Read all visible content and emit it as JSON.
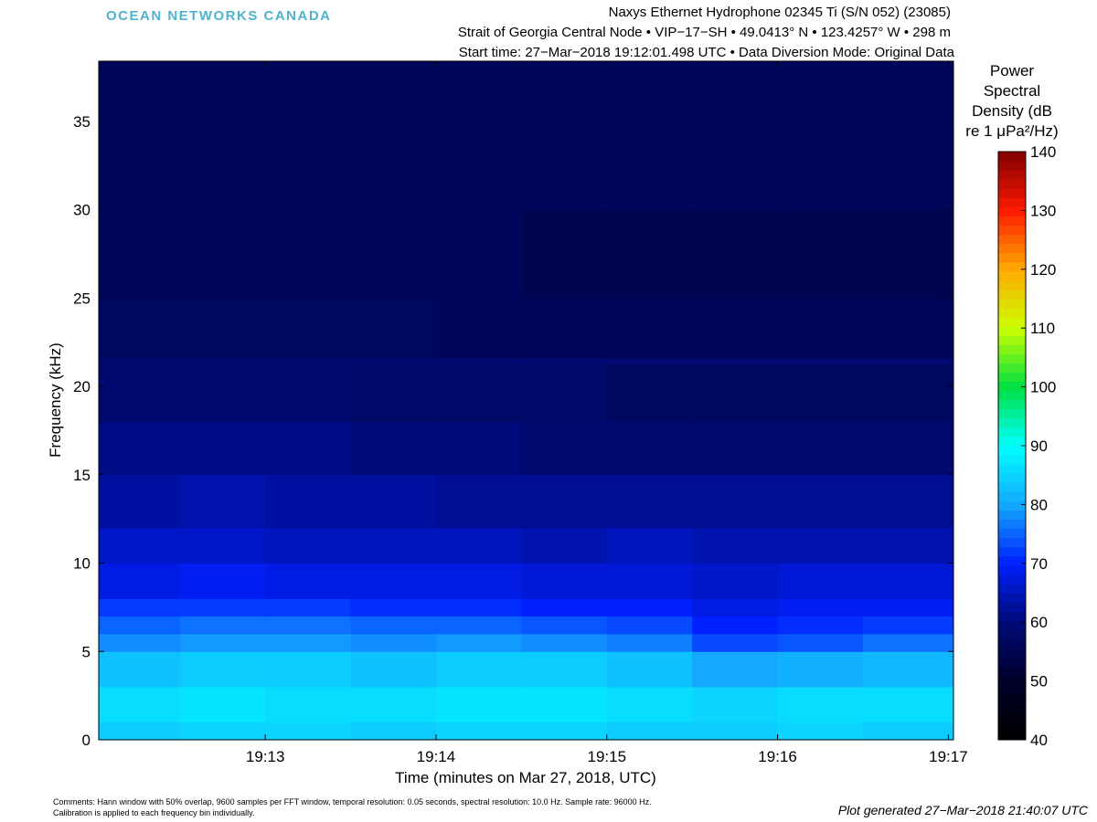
{
  "header": {
    "logo": "OCEAN NETWORKS CANADA",
    "title_lines": [
      "Naxys Ethernet Hydrophone 02345 Ti (S/N 052) (23085)",
      "Strait of Georgia Central Node • VIP−17−SH • 49.0413° N • 123.4257° W • 298 m",
      "Start time: 27−Mar−2018 19:12:01.498 UTC • Data Diversion Mode: Original Data"
    ]
  },
  "chart_data": {
    "type": "heatmap",
    "xlabel": "Time (minutes on Mar 27, 2018, UTC)",
    "ylabel": "Frequency (kHz)",
    "xlim": [
      12.025,
      17.03
    ],
    "ylim": [
      0,
      38.4
    ],
    "xticks": [
      {
        "value": 13,
        "label": "19:13"
      },
      {
        "value": 14,
        "label": "19:14"
      },
      {
        "value": 15,
        "label": "19:15"
      },
      {
        "value": 16,
        "label": "19:16"
      },
      {
        "value": 17,
        "label": "19:17"
      }
    ],
    "yticks": [
      0,
      5,
      10,
      15,
      20,
      25,
      30,
      35
    ],
    "x_bins": [
      12.025,
      12.5,
      13,
      13.5,
      14,
      14.5,
      15,
      15.5,
      16,
      16.5,
      17.03
    ],
    "y_bins": [
      0,
      1,
      3,
      5,
      6,
      7,
      8,
      10,
      12,
      15,
      18,
      21.3,
      21.6,
      25,
      30,
      38.4
    ],
    "z": [
      [
        84,
        85,
        85,
        84,
        85,
        85,
        84,
        84,
        85,
        84
      ],
      [
        86,
        87,
        86,
        86,
        87,
        87,
        86,
        85,
        86,
        86
      ],
      [
        83,
        84,
        84,
        83,
        84,
        84,
        83,
        80,
        81,
        82
      ],
      [
        78,
        79,
        79,
        78,
        79,
        78,
        77,
        73,
        74,
        76
      ],
      [
        75,
        76,
        76,
        75,
        75,
        74,
        73,
        70,
        71,
        72
      ],
      [
        72,
        72,
        72,
        71,
        71,
        70,
        70,
        68,
        69,
        69
      ],
      [
        68,
        69,
        68,
        68,
        68,
        67,
        67,
        66,
        67,
        67
      ],
      [
        66,
        66,
        65,
        65,
        65,
        64,
        65,
        64,
        64,
        64
      ],
      [
        63,
        64,
        63,
        63,
        62,
        62,
        62,
        62,
        62,
        62
      ],
      [
        61,
        61,
        61,
        60,
        60,
        59,
        59,
        59,
        59,
        59
      ],
      [
        59,
        59,
        59,
        58,
        58,
        58,
        57,
        57,
        57,
        57
      ],
      [
        59,
        59,
        59,
        59,
        59,
        59,
        59,
        59,
        59,
        59
      ],
      [
        57,
        57,
        57,
        57,
        56,
        56,
        56,
        56,
        56,
        56
      ],
      [
        56,
        56,
        56,
        56,
        56,
        55,
        55,
        55,
        55,
        55
      ],
      [
        56,
        56,
        56,
        56,
        56,
        56,
        56,
        56,
        56,
        56
      ]
    ],
    "colorbar": {
      "label_lines": [
        "Power",
        "Spectral",
        "Density (dB",
        "re 1 μPa²/Hz)"
      ],
      "zlim": [
        40,
        140
      ],
      "ticks": [
        40,
        50,
        60,
        70,
        80,
        90,
        100,
        110,
        120,
        130,
        140
      ],
      "colormap": [
        "#000000",
        "#00002a",
        "#000a78",
        "#0020ff",
        "#14a8ff",
        "#00ffff",
        "#00e040",
        "#ccff00",
        "#ffaa00",
        "#ff1a00",
        "#800000"
      ]
    }
  },
  "footer": {
    "comments": [
      "Comments: Hann window with 50% overlap, 9600 samples per FFT window, temporal resolution: 0.05 seconds, spectral resolution: 10.0 Hz. Sample rate: 96000 Hz.",
      "Calibration is applied to each frequency bin individually."
    ],
    "generated": "Plot generated 27−Mar−2018 21:40:07 UTC"
  }
}
